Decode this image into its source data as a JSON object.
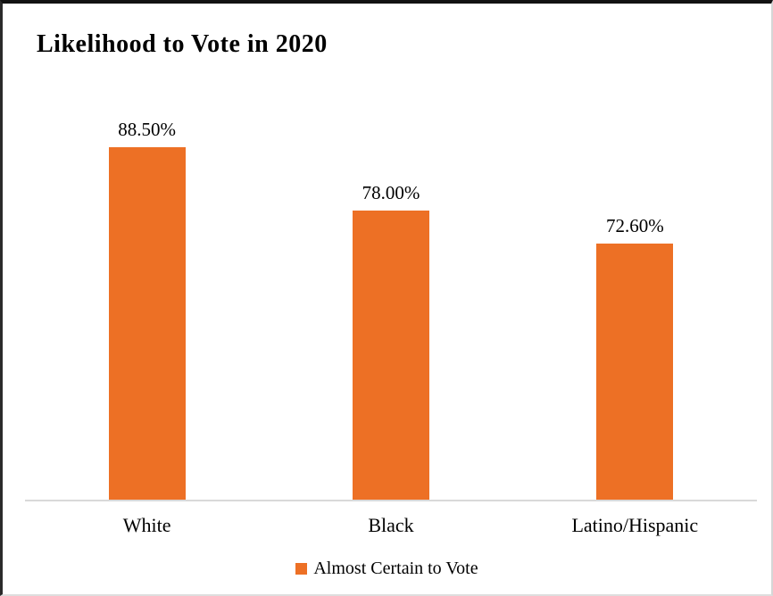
{
  "chart_data": {
    "type": "bar",
    "title": "Likelihood to Vote in 2020",
    "categories": [
      "White",
      "Black",
      "Latino/Hispanic"
    ],
    "series": [
      {
        "name": "Almost Certain to Vote",
        "values": [
          88.5,
          78.0,
          72.6
        ]
      }
    ],
    "value_labels": [
      "88.50%",
      "78.00%",
      "72.60%"
    ],
    "ylim": [
      30,
      95
    ],
    "grid": false,
    "legend_position": "bottom",
    "bar_color": "#ED7025",
    "axis_line_color": "#d9d9d9"
  }
}
